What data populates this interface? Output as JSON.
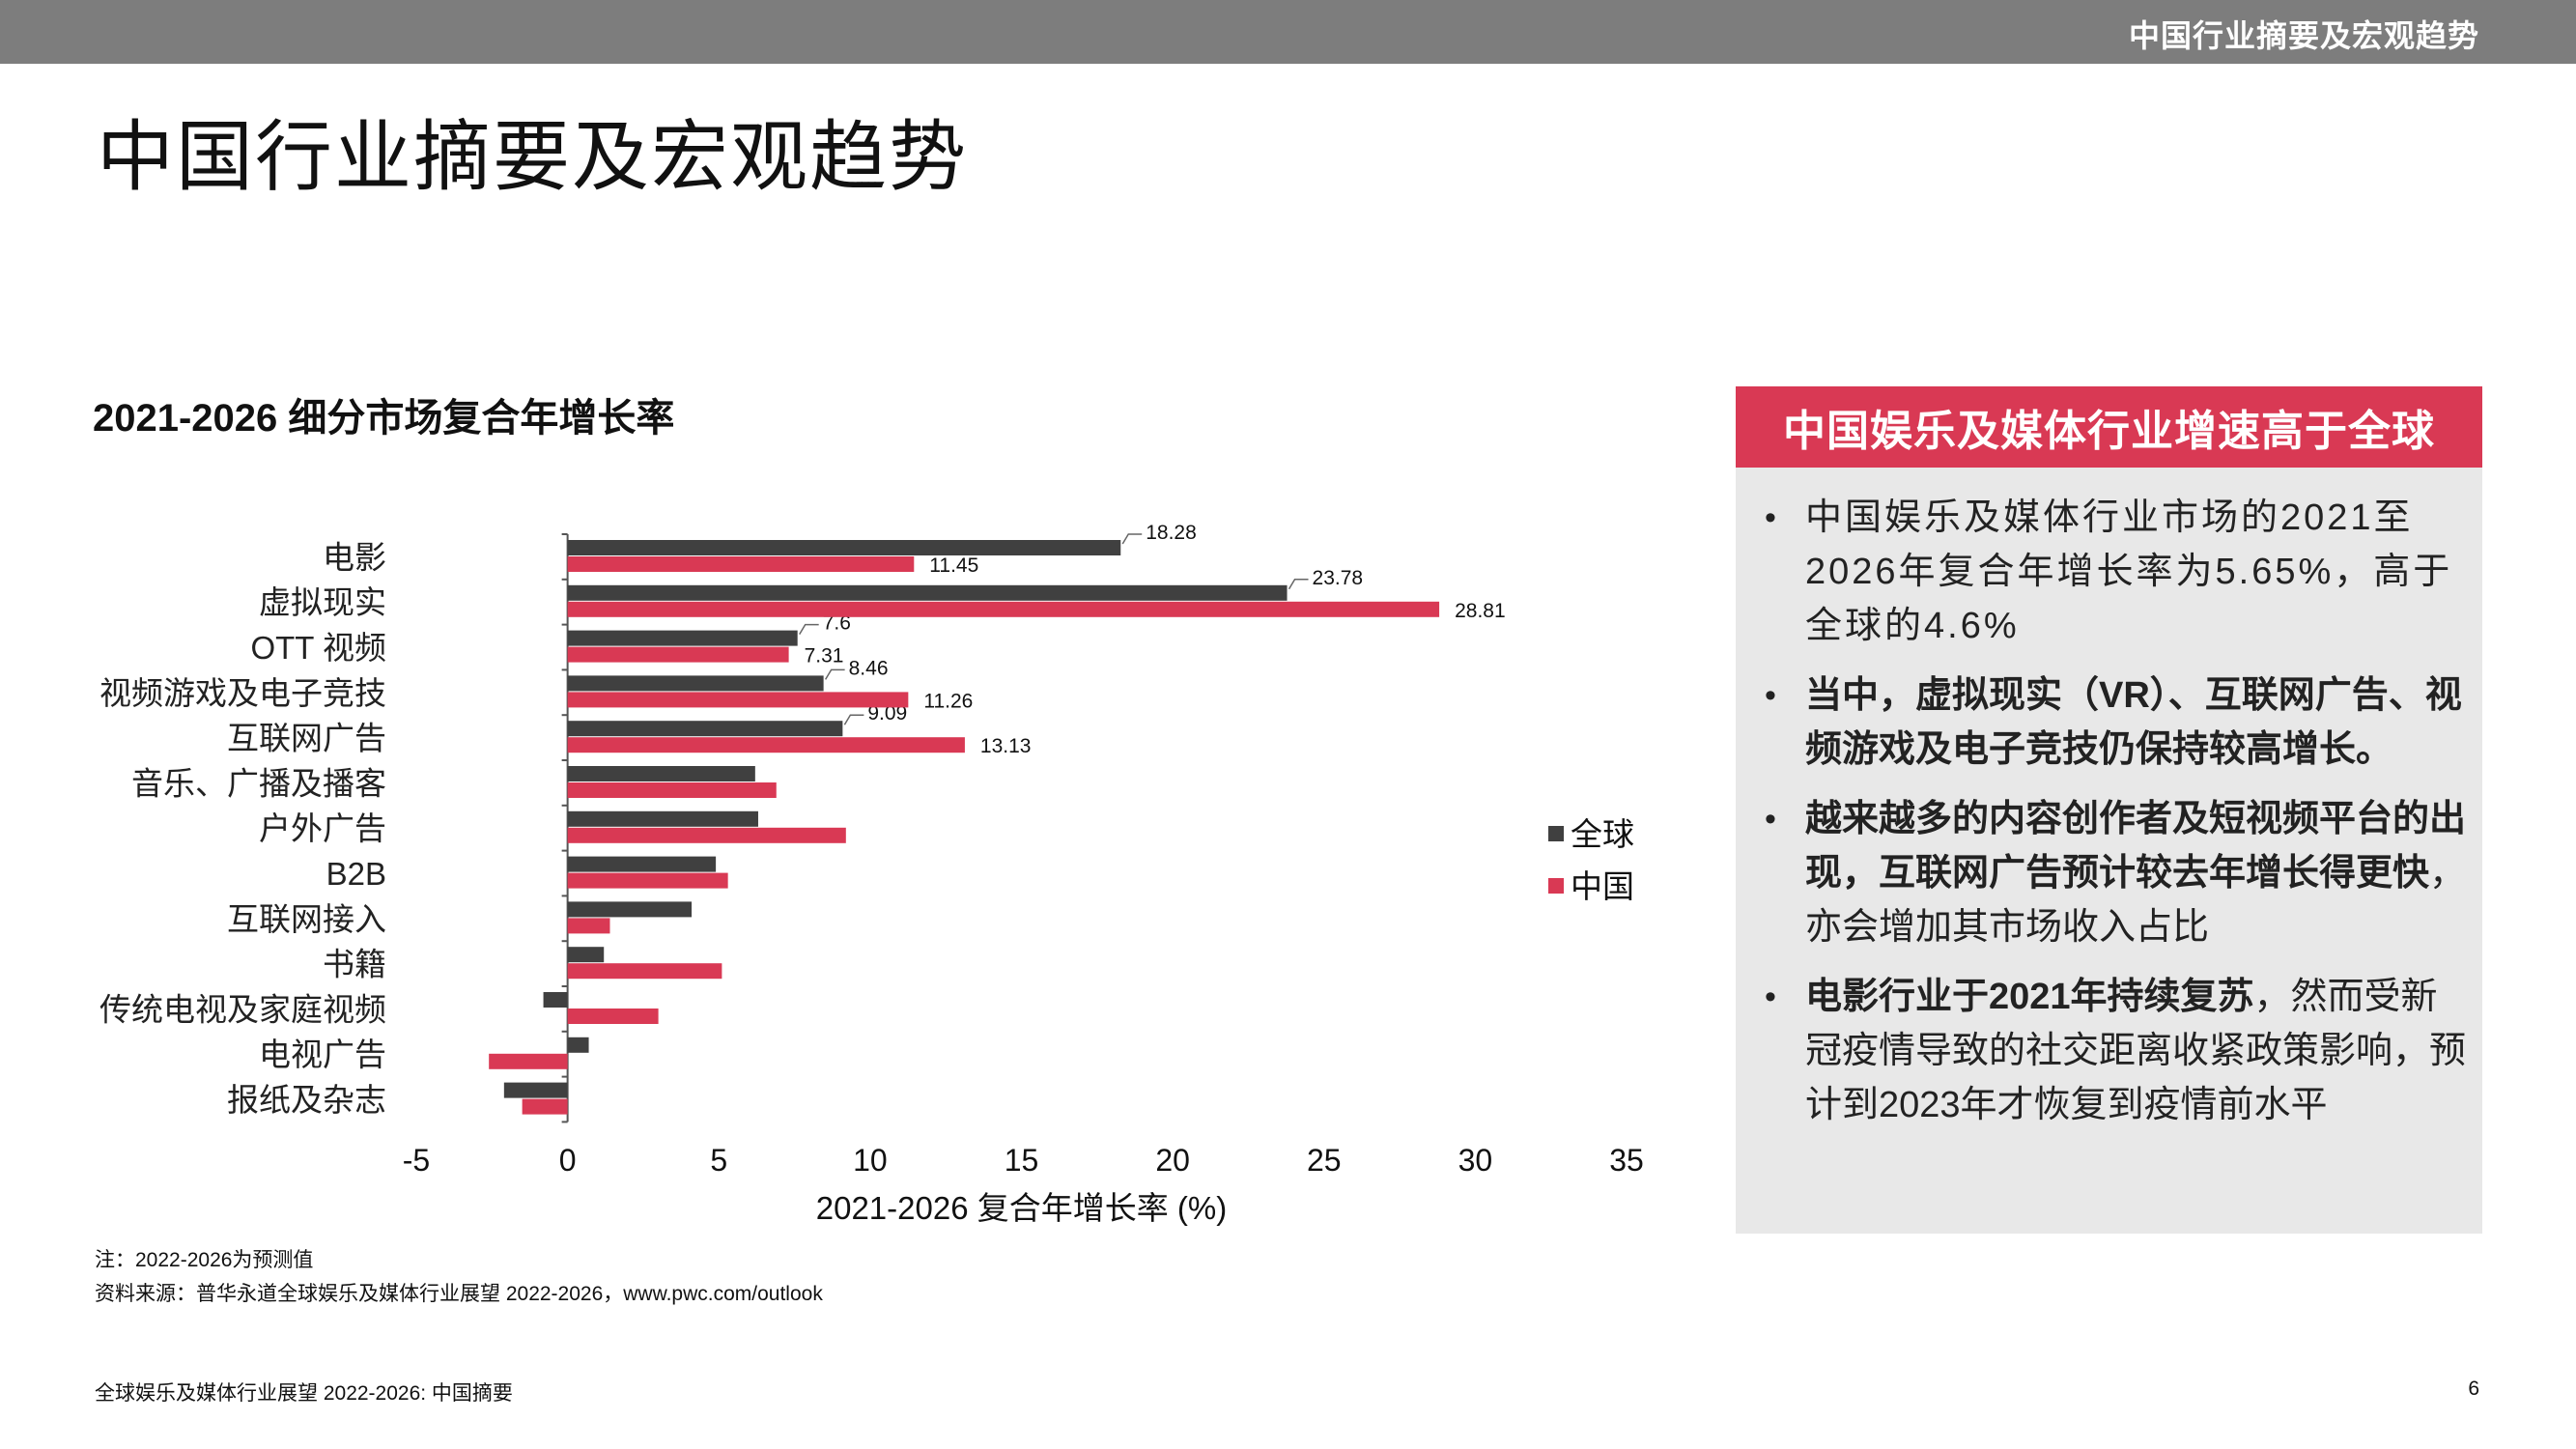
{
  "header": {
    "section_title": "中国行业摘要及宏观趋势"
  },
  "page": {
    "title": "中国行业摘要及宏观趋势"
  },
  "chart_data": {
    "type": "bar",
    "orientation": "horizontal",
    "title": "2021-2026 细分市场复合年增长率",
    "xlabel": "2021-2026 复合年增长率 (%)",
    "ylabel": "",
    "xlim": [
      -5,
      35
    ],
    "xticks": [
      -5,
      0,
      5,
      10,
      15,
      20,
      25,
      30,
      35
    ],
    "categories": [
      "电影",
      "虚拟现实",
      "OTT 视频",
      "视频游戏及电子竞技",
      "互联网广告",
      "音乐、广播及播客",
      "户外广告",
      "B2B",
      "互联网接入",
      "书籍",
      "传统电视及家庭视频",
      "电视广告",
      "报纸及杂志"
    ],
    "series": [
      {
        "name": "全球",
        "color": "#404040",
        "values": [
          18.28,
          23.78,
          7.6,
          8.46,
          9.09,
          6.2,
          6.3,
          4.9,
          4.1,
          1.2,
          -0.8,
          0.7,
          -2.1
        ],
        "labels": [
          "18.28",
          "23.78",
          "7.6",
          "8.46",
          "9.09",
          null,
          null,
          null,
          null,
          null,
          null,
          null,
          null
        ]
      },
      {
        "name": "中国",
        "color": "#d93954",
        "values": [
          11.45,
          28.81,
          7.31,
          11.26,
          13.13,
          6.9,
          9.2,
          5.3,
          1.4,
          5.1,
          3.0,
          -2.6,
          -1.5
        ],
        "labels": [
          "11.45",
          "28.81",
          "7.31",
          "11.26",
          "13.13",
          null,
          null,
          null,
          null,
          null,
          null,
          null,
          null
        ]
      }
    ],
    "legend": {
      "position": "right",
      "entries": [
        "全球",
        "中国"
      ]
    }
  },
  "notes": {
    "note1": "注：2022-2026为预测值",
    "source": "资料来源：普华永道全球娱乐及媒体行业展望 2022-2026，www.pwc.com/outlook"
  },
  "panel": {
    "header": "中国娱乐及媒体行业增速高于全球",
    "bullet_char": "•",
    "b1": "中国娱乐及媒体行业市场的2021至2026年复合年增长率为5.65%，高于全球的4.6%",
    "b2": "当中，虚拟现实（VR）、互联网广告、视频游戏及电子竞技仍保持较高增长。",
    "b3_bold": "越来越多的内容创作者及短视频平台的出现，互联网广告预计较去年增长得更快",
    "b3_rest": "，亦会增加其市场收入占比",
    "b4_bold": "电影行业于2021年持续复苏",
    "b4_rest": "，然而受新冠疫情导致的社交距离收紧政策影响，预计到2023年才恢复到疫情前水平"
  },
  "footer": {
    "text": "全球娱乐及媒体行业展望 2022-2026: 中国摘要",
    "page_number": "6"
  }
}
